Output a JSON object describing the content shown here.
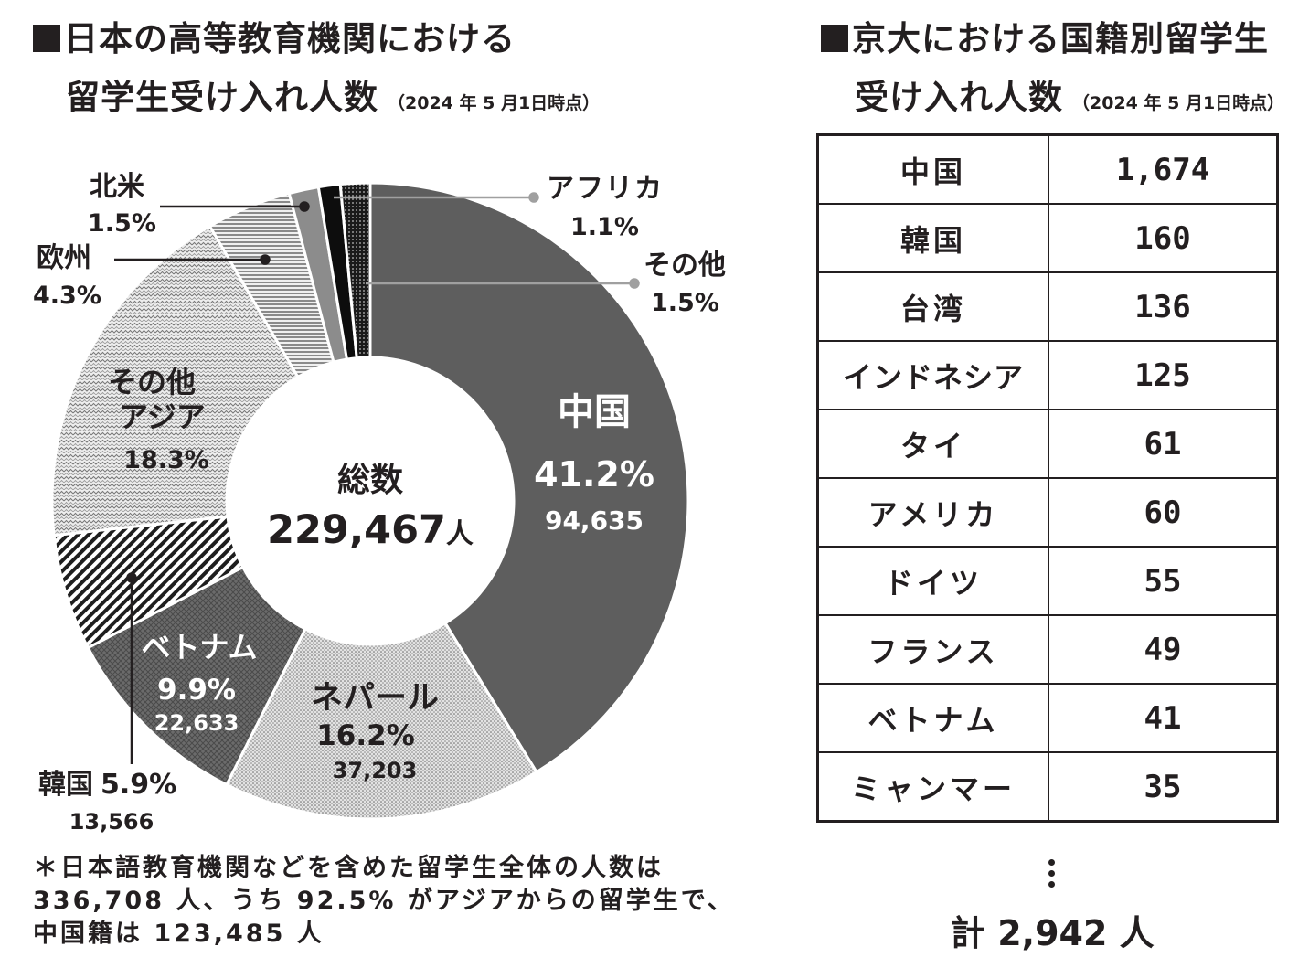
{
  "left_title": {
    "line1": "日本の高等教育機関における",
    "line2": "留学生受け入れ人数",
    "date_note": "（2024 年 5 月1日時点）"
  },
  "right_title": {
    "line1": "京大における国籍別留学生",
    "line2": "受け入れ人数",
    "date_note": "（2024 年 5 月1日時点）"
  },
  "center": {
    "label": "総数",
    "total": "229,467",
    "unit": "人"
  },
  "chart_data": {
    "type": "pie",
    "title": "日本の高等教育機関における留学生受け入れ人数",
    "total": 229467,
    "slices": [
      {
        "name": "中国",
        "percent": 41.2,
        "count": "94,635",
        "percent_label": "41.2%",
        "fill": "#5e5e5e"
      },
      {
        "name": "ネパール",
        "percent": 16.2,
        "count": "37,203",
        "percent_label": "16.2%",
        "fill": "#dcdcdc"
      },
      {
        "name": "ベトナム",
        "percent": 9.9,
        "count": "22,633",
        "percent_label": "9.9%",
        "fill": "#6d6d6d"
      },
      {
        "name": "韓国",
        "percent": 5.9,
        "count": "13,566",
        "percent_label": "5.9%",
        "fill": "#8a8a8a"
      },
      {
        "name": "その他アジア",
        "percent": 18.3,
        "percent_label": "18.3%",
        "fill": "#cfcfcf"
      },
      {
        "name": "欧州",
        "percent": 4.3,
        "percent_label": "4.3%",
        "fill": "#b0b0b0"
      },
      {
        "name": "北米",
        "percent": 1.5,
        "percent_label": "1.5%",
        "fill": "#8c8c8c"
      },
      {
        "name": "アフリカ",
        "percent": 1.1,
        "percent_label": "1.1%",
        "fill": "#111111"
      },
      {
        "name": "その他",
        "percent": 1.5,
        "percent_label": "1.5%",
        "fill": "#333333"
      }
    ]
  },
  "labels": {
    "china_name": "中国",
    "nepal_name": "ネパール",
    "vietnam_name": "ベトナム",
    "korea_name": "韓国",
    "other_asia_line1": "その他",
    "other_asia_line2": "アジア",
    "europe_name": "欧州",
    "north_america_name": "北米",
    "africa_name": "アフリカ",
    "other_line1": "その他"
  },
  "footnote": "＊日本語教育機関などを含めた留学生全体の人数は 336,708 人、うち 92.5% がアジアからの留学生で、中国籍は 123,485 人",
  "table_rows": [
    {
      "country": "中国",
      "count": "1,674"
    },
    {
      "country": "韓国",
      "count": "160"
    },
    {
      "country": "台湾",
      "count": "136"
    },
    {
      "country": "インドネシア",
      "count": "125"
    },
    {
      "country": "タイ",
      "count": "61"
    },
    {
      "country": "アメリカ",
      "count": "60"
    },
    {
      "country": "ドイツ",
      "count": "55"
    },
    {
      "country": "フランス",
      "count": "49"
    },
    {
      "country": "ベトナム",
      "count": "41"
    },
    {
      "country": "ミャンマー",
      "count": "35"
    }
  ],
  "table_total": "計 2,942 人"
}
